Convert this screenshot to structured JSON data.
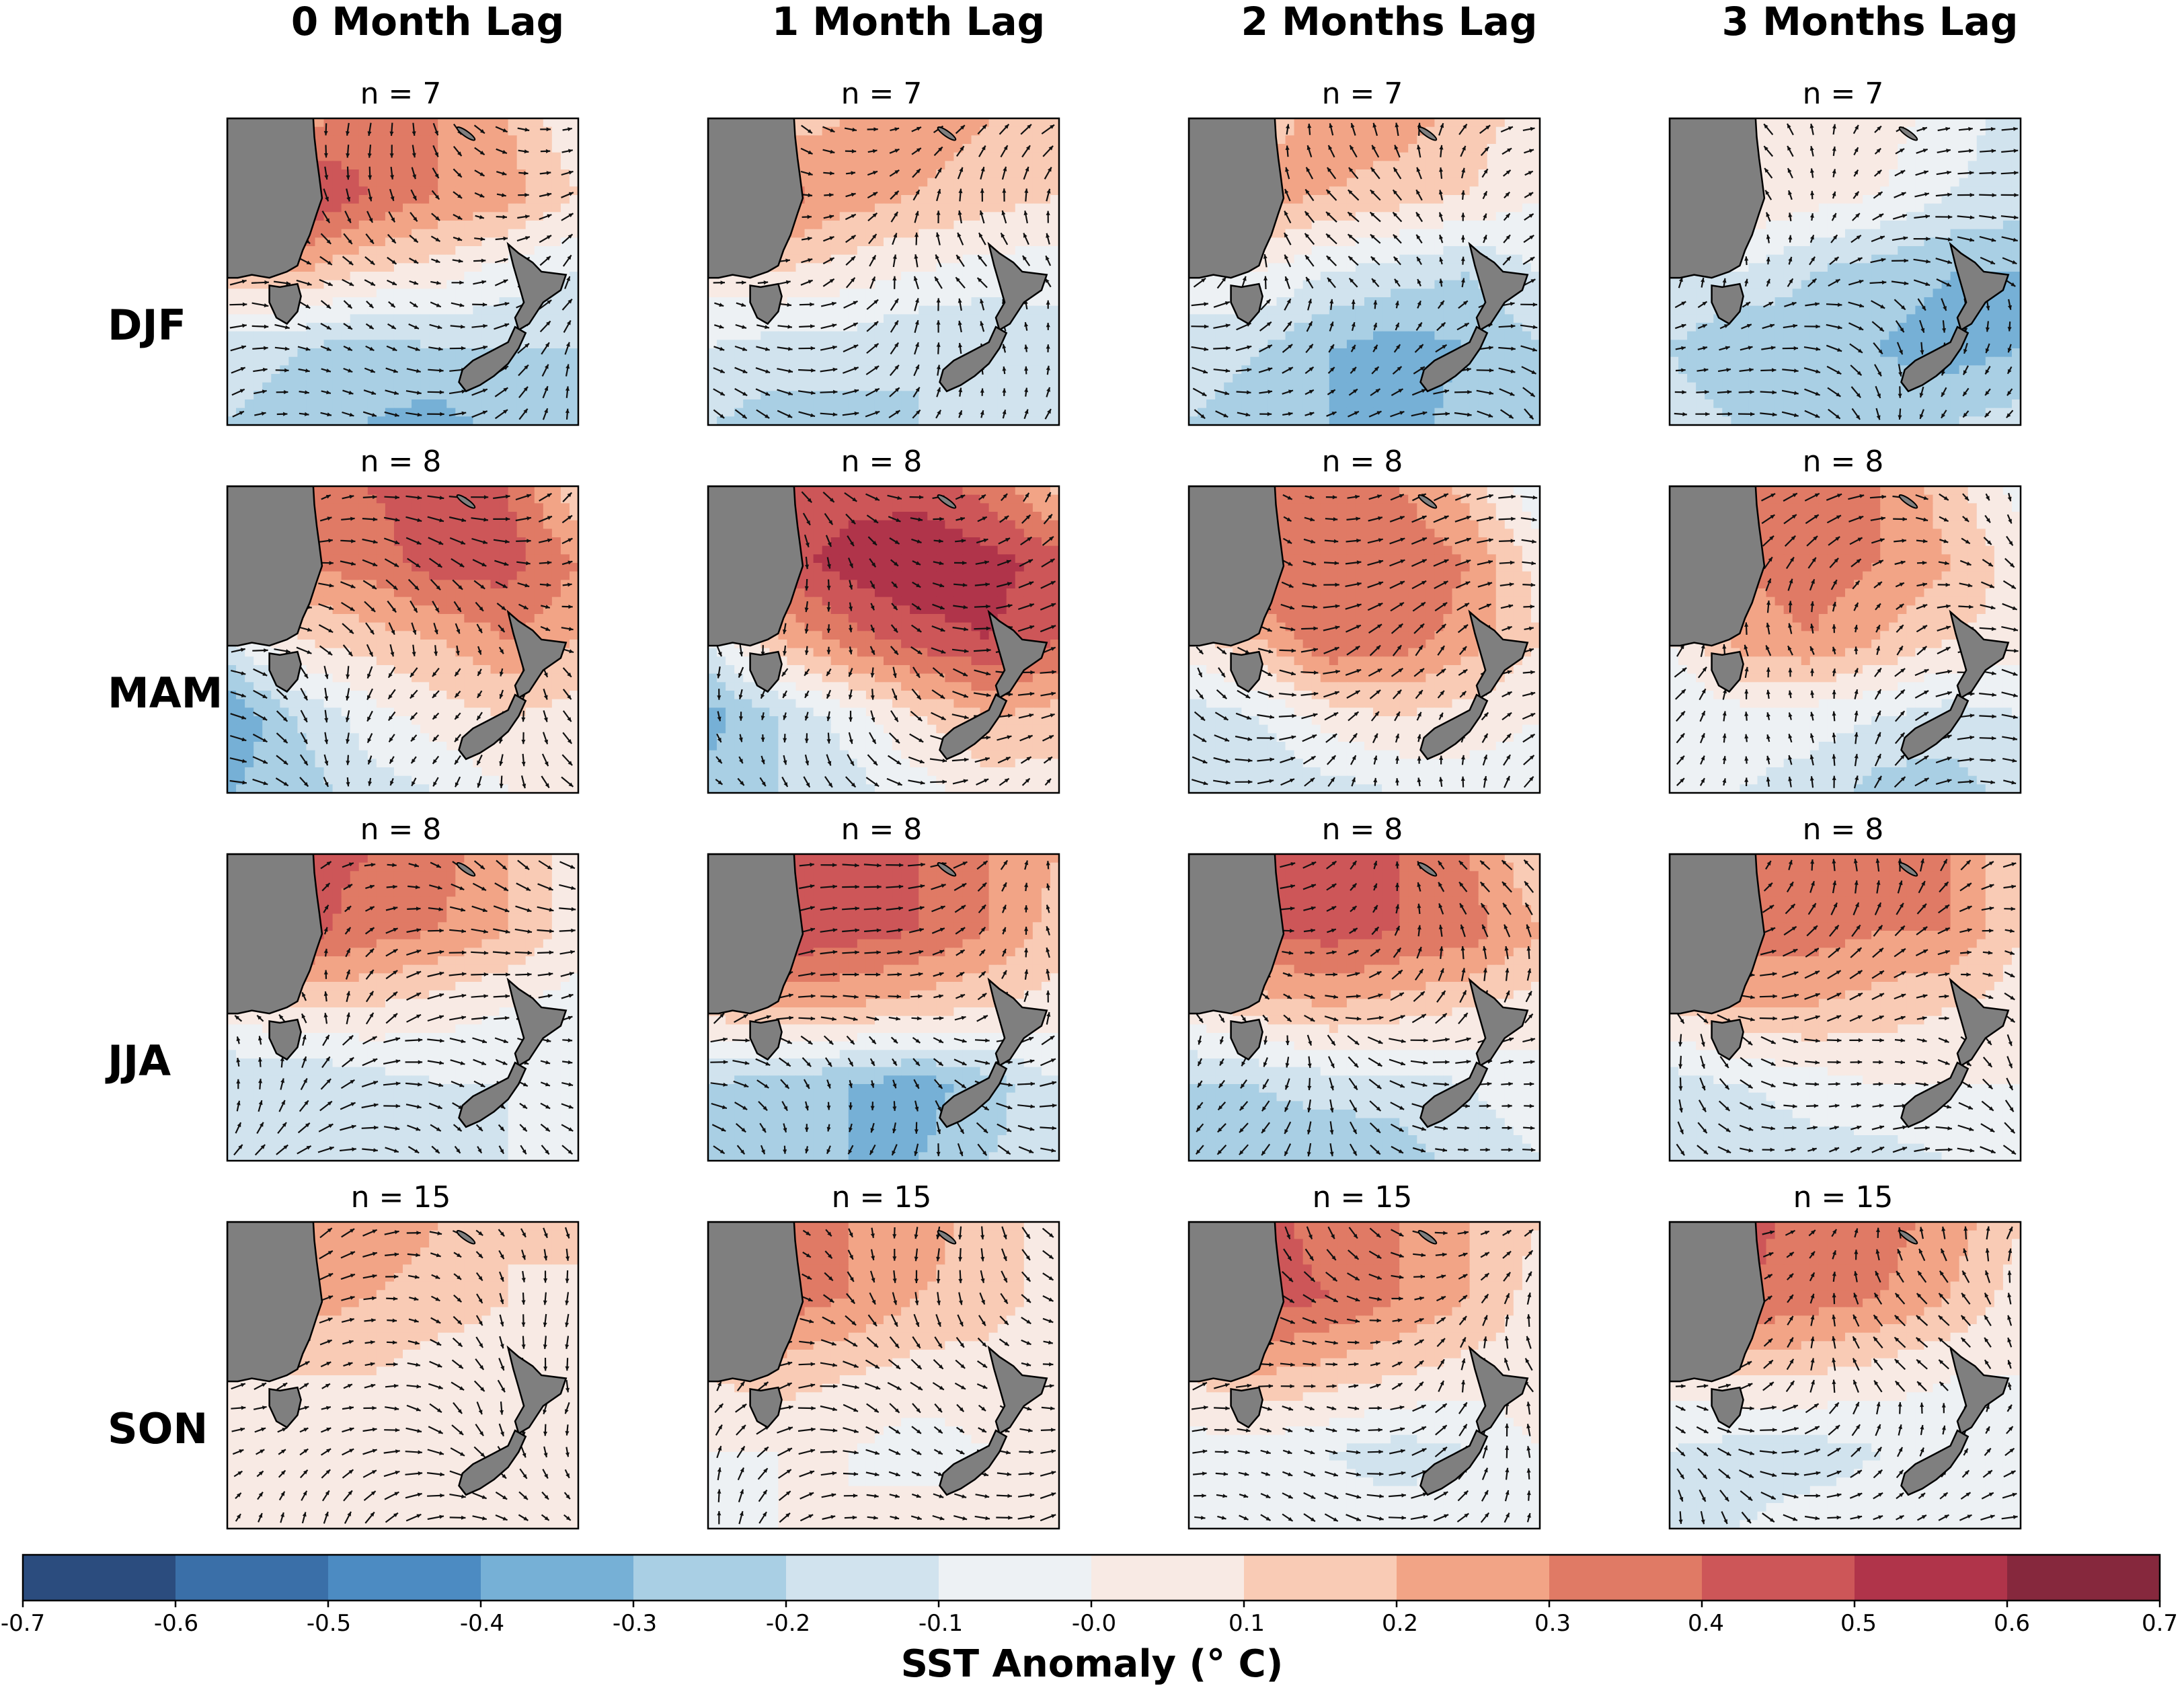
{
  "chart_data": {
    "type": "heatmap",
    "title": "",
    "colorbar_label": "SST Anomaly (° C)",
    "colorbar_ticks": [
      "-0.7",
      "-0.6",
      "-0.5",
      "-0.4",
      "-0.3",
      "-0.2",
      "-0.1",
      "-0.0",
      "0.1",
      "0.2",
      "0.3",
      "0.4",
      "0.5",
      "0.6",
      "0.7"
    ],
    "color_levels": [
      "#2b4c7e",
      "#3a6fa8",
      "#4c8bc2",
      "#76b0d6",
      "#a9cfe4",
      "#d1e3ee",
      "#edf1f4",
      "#f8eae4",
      "#f9cbb5",
      "#f2a486",
      "#e07a65",
      "#cd5658",
      "#b0344a",
      "#86283d"
    ],
    "value_range": [
      -0.7,
      0.7
    ],
    "columns": [
      "0 Month Lag",
      "1 Month Lag",
      "2 Months Lag",
      "3 Months Lag"
    ],
    "rows": [
      "DJF",
      "MAM",
      "JJA",
      "SON"
    ],
    "panels": [
      {
        "season": "DJF",
        "lag": "0 Month Lag",
        "n": "n = 7"
      },
      {
        "season": "DJF",
        "lag": "1 Month Lag",
        "n": "n = 7"
      },
      {
        "season": "DJF",
        "lag": "2 Months Lag",
        "n": "n = 7"
      },
      {
        "season": "DJF",
        "lag": "3 Months Lag",
        "n": "n = 7"
      },
      {
        "season": "MAM",
        "lag": "0 Month Lag",
        "n": "n = 8"
      },
      {
        "season": "MAM",
        "lag": "1 Month Lag",
        "n": "n = 8"
      },
      {
        "season": "MAM",
        "lag": "2 Months Lag",
        "n": "n = 8"
      },
      {
        "season": "MAM",
        "lag": "3 Months Lag",
        "n": "n = 8"
      },
      {
        "season": "JJA",
        "lag": "0 Month Lag",
        "n": "n = 8"
      },
      {
        "season": "JJA",
        "lag": "1 Month Lag",
        "n": "n = 8"
      },
      {
        "season": "JJA",
        "lag": "2 Months Lag",
        "n": "n = 8"
      },
      {
        "season": "JJA",
        "lag": "3 Months Lag",
        "n": "n = 8"
      },
      {
        "season": "SON",
        "lag": "0 Month Lag",
        "n": "n = 15"
      },
      {
        "season": "SON",
        "lag": "1 Month Lag",
        "n": "n = 15"
      },
      {
        "season": "SON",
        "lag": "2 Months Lag",
        "n": "n = 15"
      },
      {
        "season": "SON",
        "lag": "3 Months Lag",
        "n": "n = 15"
      }
    ],
    "anomaly_fields": [
      [
        [
          0.1,
          0.25,
          0.35,
          0.3,
          0.2,
          0.0
        ],
        [
          0.2,
          0.55,
          0.4,
          0.3,
          0.25,
          0.1
        ],
        [
          0.15,
          0.2,
          0.1,
          0.05,
          -0.05,
          -0.1
        ],
        [
          -0.15,
          -0.2,
          -0.25,
          -0.2,
          -0.2,
          -0.2
        ],
        [
          -0.2,
          -0.25,
          -0.3,
          -0.35,
          -0.25,
          -0.2
        ]
      ],
      [
        [
          0.1,
          0.15,
          0.2,
          0.25,
          0.2,
          0.1
        ],
        [
          0.15,
          0.35,
          0.25,
          0.2,
          0.15,
          0.1
        ],
        [
          0.05,
          0.1,
          0.05,
          0.0,
          -0.05,
          -0.05
        ],
        [
          -0.1,
          -0.15,
          -0.15,
          -0.2,
          -0.2,
          -0.15
        ],
        [
          -0.2,
          -0.25,
          -0.25,
          -0.2,
          -0.2,
          -0.15
        ]
      ],
      [
        [
          0.05,
          0.15,
          0.25,
          0.25,
          0.15,
          0.05
        ],
        [
          0.1,
          0.25,
          0.2,
          0.15,
          0.1,
          0.0
        ],
        [
          -0.05,
          0.0,
          -0.1,
          -0.15,
          -0.2,
          -0.1
        ],
        [
          -0.15,
          -0.2,
          -0.3,
          -0.35,
          -0.3,
          -0.2
        ],
        [
          -0.2,
          -0.25,
          -0.3,
          -0.35,
          -0.25,
          -0.2
        ]
      ],
      [
        [
          0.0,
          0.1,
          0.1,
          0.05,
          -0.05,
          -0.15
        ],
        [
          0.05,
          0.1,
          0.05,
          0.0,
          -0.1,
          -0.15
        ],
        [
          -0.1,
          -0.1,
          -0.2,
          -0.25,
          -0.3,
          -0.3
        ],
        [
          -0.2,
          -0.3,
          -0.25,
          -0.3,
          -0.35,
          -0.3
        ],
        [
          -0.15,
          -0.2,
          -0.2,
          -0.25,
          -0.2,
          -0.15
        ]
      ],
      [
        [
          0.15,
          0.35,
          0.4,
          0.45,
          0.4,
          0.1
        ],
        [
          0.2,
          0.3,
          0.35,
          0.45,
          0.45,
          0.3
        ],
        [
          -0.1,
          0.1,
          0.15,
          0.2,
          0.3,
          0.2
        ],
        [
          -0.4,
          -0.2,
          -0.05,
          0.05,
          0.1,
          0.05
        ],
        [
          -0.3,
          -0.25,
          -0.15,
          -0.1,
          0.0,
          0.0
        ]
      ],
      [
        [
          0.3,
          0.4,
          0.45,
          0.45,
          0.35,
          0.15
        ],
        [
          0.3,
          0.45,
          0.55,
          0.6,
          0.55,
          0.45
        ],
        [
          -0.1,
          0.2,
          0.35,
          0.45,
          0.5,
          0.4
        ],
        [
          -0.35,
          -0.2,
          -0.05,
          0.1,
          0.2,
          0.15
        ],
        [
          -0.25,
          -0.2,
          -0.15,
          -0.05,
          0.05,
          0.05
        ]
      ],
      [
        [
          0.3,
          0.35,
          0.35,
          0.3,
          0.15,
          -0.1
        ],
        [
          0.3,
          0.4,
          0.4,
          0.4,
          0.3,
          0.05
        ],
        [
          0.05,
          0.2,
          0.4,
          0.35,
          0.25,
          0.1
        ],
        [
          -0.15,
          -0.1,
          0.05,
          0.1,
          0.05,
          0.0
        ],
        [
          -0.2,
          -0.2,
          -0.15,
          -0.1,
          -0.05,
          -0.05
        ]
      ],
      [
        [
          0.2,
          0.3,
          0.35,
          0.3,
          0.15,
          -0.05
        ],
        [
          0.2,
          0.3,
          0.35,
          0.3,
          0.2,
          0.05
        ],
        [
          0.0,
          0.25,
          0.3,
          0.2,
          0.1,
          0.05
        ],
        [
          -0.1,
          -0.05,
          -0.05,
          -0.1,
          -0.15,
          -0.1
        ],
        [
          -0.1,
          -0.1,
          -0.15,
          -0.25,
          -0.25,
          -0.15
        ]
      ],
      [
        [
          0.3,
          0.45,
          0.4,
          0.35,
          0.2,
          0.05
        ],
        [
          0.3,
          0.45,
          0.35,
          0.3,
          0.2,
          0.05
        ],
        [
          0.05,
          0.1,
          0.1,
          0.05,
          0.0,
          -0.05
        ],
        [
          -0.2,
          -0.2,
          -0.15,
          -0.1,
          -0.1,
          -0.05
        ],
        [
          -0.2,
          -0.2,
          -0.15,
          -0.15,
          -0.1,
          -0.05
        ]
      ],
      [
        [
          0.4,
          0.5,
          0.45,
          0.4,
          0.3,
          0.2
        ],
        [
          0.4,
          0.5,
          0.45,
          0.4,
          0.3,
          0.15
        ],
        [
          0.15,
          0.2,
          0.2,
          0.15,
          0.1,
          0.05
        ],
        [
          -0.2,
          -0.25,
          -0.3,
          -0.35,
          -0.25,
          -0.1
        ],
        [
          -0.2,
          -0.25,
          -0.3,
          -0.3,
          -0.2,
          -0.15
        ]
      ],
      [
        [
          0.35,
          0.45,
          0.45,
          0.4,
          0.3,
          0.1
        ],
        [
          0.3,
          0.4,
          0.45,
          0.4,
          0.35,
          0.2
        ],
        [
          0.05,
          0.15,
          0.2,
          0.15,
          0.1,
          0.05
        ],
        [
          -0.2,
          -0.2,
          -0.15,
          -0.15,
          -0.1,
          -0.05
        ],
        [
          -0.25,
          -0.25,
          -0.3,
          -0.25,
          -0.15,
          -0.1
        ]
      ],
      [
        [
          0.3,
          0.35,
          0.35,
          0.35,
          0.3,
          0.1
        ],
        [
          0.3,
          0.35,
          0.35,
          0.3,
          0.3,
          0.1
        ],
        [
          0.1,
          0.2,
          0.2,
          0.15,
          0.1,
          0.05
        ],
        [
          -0.15,
          -0.1,
          -0.05,
          0.0,
          0.0,
          0.0
        ],
        [
          -0.2,
          -0.2,
          -0.15,
          -0.15,
          -0.1,
          -0.05
        ]
      ],
      [
        [
          0.15,
          0.3,
          0.3,
          0.2,
          0.1,
          0.15
        ],
        [
          0.15,
          0.25,
          0.2,
          0.15,
          0.1,
          0.05
        ],
        [
          0.05,
          0.1,
          0.1,
          0.05,
          0.05,
          0.05
        ],
        [
          0.0,
          0.0,
          0.05,
          0.05,
          0.05,
          0.0
        ],
        [
          0.05,
          0.05,
          0.05,
          0.05,
          0.0,
          0.0
        ]
      ],
      [
        [
          0.25,
          0.35,
          0.3,
          0.25,
          0.15,
          0.05
        ],
        [
          0.25,
          0.35,
          0.3,
          0.2,
          0.15,
          0.05
        ],
        [
          0.1,
          0.15,
          0.1,
          0.05,
          0.05,
          0.05
        ],
        [
          0.0,
          0.0,
          0.0,
          -0.05,
          0.0,
          0.0
        ],
        [
          -0.05,
          0.0,
          0.0,
          0.05,
          0.05,
          0.0
        ]
      ],
      [
        [
          0.35,
          0.45,
          0.35,
          0.3,
          0.2,
          0.1
        ],
        [
          0.35,
          0.45,
          0.4,
          0.3,
          0.2,
          0.05
        ],
        [
          0.1,
          0.2,
          0.15,
          0.1,
          0.05,
          0.05
        ],
        [
          -0.05,
          -0.05,
          -0.1,
          -0.15,
          -0.1,
          0.0
        ],
        [
          -0.05,
          -0.05,
          -0.05,
          -0.05,
          0.0,
          0.0
        ]
      ],
      [
        [
          0.3,
          0.45,
          0.35,
          0.35,
          0.25,
          0.1
        ],
        [
          0.3,
          0.4,
          0.35,
          0.3,
          0.2,
          0.05
        ],
        [
          0.05,
          0.1,
          0.1,
          0.05,
          0.0,
          0.0
        ],
        [
          -0.1,
          -0.15,
          -0.15,
          -0.1,
          -0.05,
          0.0
        ],
        [
          -0.1,
          -0.1,
          -0.05,
          -0.05,
          0.0,
          0.0
        ]
      ]
    ]
  }
}
